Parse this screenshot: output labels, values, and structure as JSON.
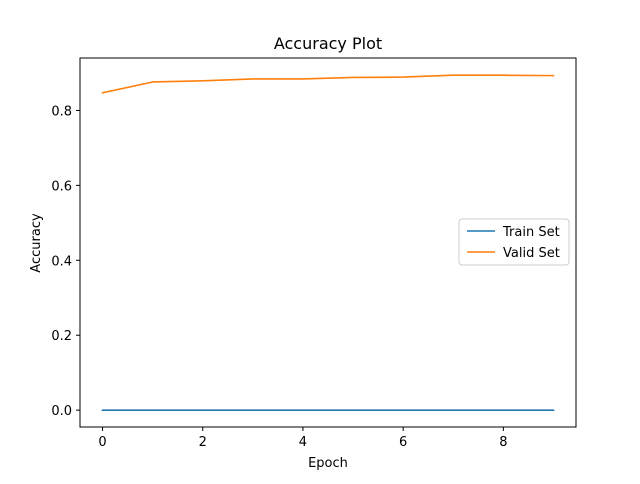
{
  "chart_data": {
    "type": "line",
    "title": "Accuracy Plot",
    "xlabel": "Epoch",
    "ylabel": "Accuracy",
    "x": [
      0,
      1,
      2,
      3,
      4,
      5,
      6,
      7,
      8,
      9
    ],
    "xlim": [
      -0.45,
      9.45
    ],
    "ylim": [
      -0.045,
      0.94
    ],
    "xticks": [
      0,
      2,
      4,
      6,
      8
    ],
    "yticks": [
      0.0,
      0.2,
      0.4,
      0.6,
      0.8
    ],
    "xtick_labels": [
      "0",
      "2",
      "4",
      "6",
      "8"
    ],
    "ytick_labels": [
      "0.0",
      "0.2",
      "0.4",
      "0.6",
      "0.8"
    ],
    "grid": false,
    "legend_position": "center-right",
    "series": [
      {
        "name": "Train Set",
        "color": "#1f77b4",
        "values": [
          0.0,
          0.0,
          0.0,
          0.0,
          0.0,
          0.0,
          0.0,
          0.0,
          0.0,
          0.0
        ]
      },
      {
        "name": "Valid Set",
        "color": "#ff7f0e",
        "values": [
          0.847,
          0.876,
          0.879,
          0.884,
          0.884,
          0.888,
          0.889,
          0.894,
          0.894,
          0.893
        ]
      }
    ]
  }
}
